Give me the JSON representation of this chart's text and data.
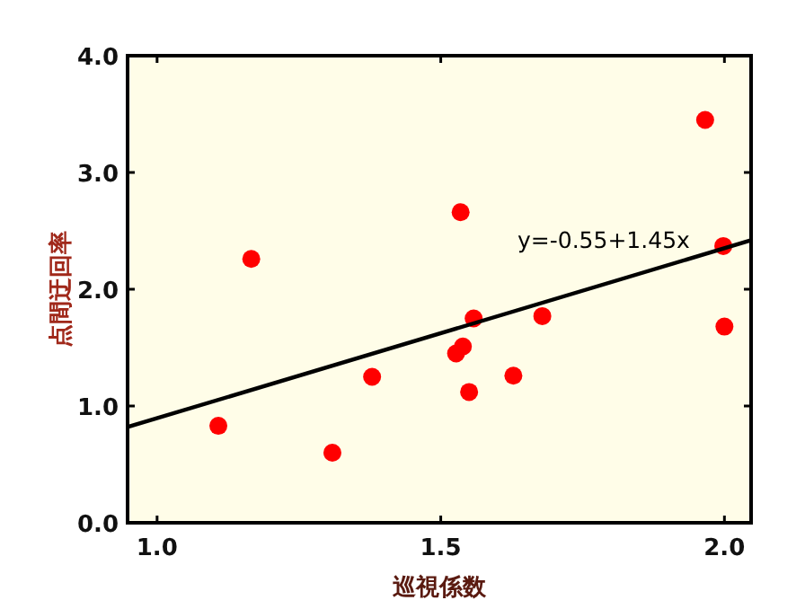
{
  "chart_data": {
    "type": "scatter",
    "xlabel": "巡視係数",
    "ylabel": "点間迂回率",
    "xlim": [
      0.948,
      2.047
    ],
    "ylim": [
      0,
      4
    ],
    "xticks": [
      {
        "value": 1,
        "label": "1.0"
      },
      {
        "value": 1.5,
        "label": "1.5"
      },
      {
        "value": 2,
        "label": "2.0"
      }
    ],
    "yticks": [
      {
        "value": 0,
        "label": "0.0"
      },
      {
        "value": 1,
        "label": "1.0"
      },
      {
        "value": 2,
        "label": "2.0"
      },
      {
        "value": 3,
        "label": "3.0"
      },
      {
        "value": 4,
        "label": "4.0"
      }
    ],
    "grid": false,
    "annotations": [
      "y=-0.55+1.45x"
    ],
    "series": [
      {
        "marker": "circle",
        "color": "#ff0000",
        "x": [
          1.108,
          1.166,
          1.309,
          1.379,
          1.535,
          1.527,
          1.539,
          1.55,
          1.558,
          1.628,
          1.679,
          1.966,
          1.998,
          2.0
        ],
        "values": [
          0.83,
          2.26,
          0.6,
          1.25,
          2.66,
          1.45,
          1.51,
          1.12,
          1.75,
          1.26,
          1.77,
          3.45,
          2.37,
          1.68
        ]
      },
      {
        "type": "line",
        "color": "#000000",
        "x": [
          0.948,
          2.047
        ],
        "values": [
          0.82,
          2.42
        ]
      }
    ]
  }
}
